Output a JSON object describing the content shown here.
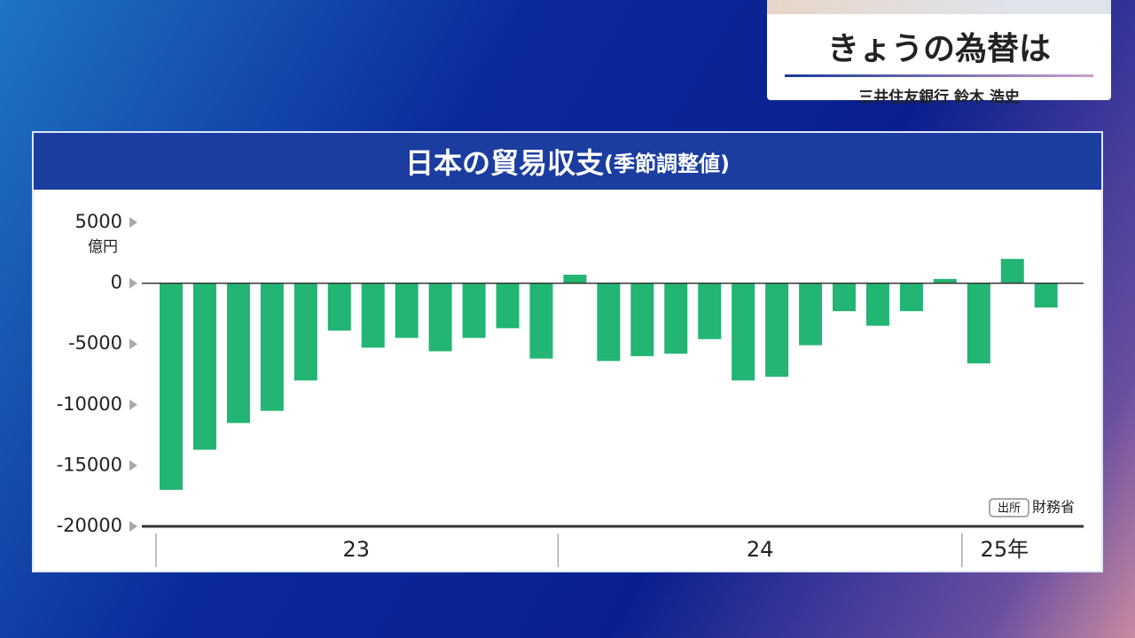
{
  "header": {
    "title": "きょうの為替は",
    "presenter": "三井住友銀行 鈴木 浩史"
  },
  "chart_data": {
    "type": "bar",
    "title": "日本の貿易収支",
    "subtitle": "(季節調整値)",
    "y_label": "億円",
    "source_tag": "出所",
    "source": "財務省",
    "categories": [
      null,
      null,
      null,
      null,
      null,
      null,
      null,
      null,
      null,
      null,
      null,
      null,
      null,
      null,
      null,
      null,
      null,
      null,
      null,
      null,
      null,
      null,
      null,
      null,
      null,
      null,
      null
    ],
    "x_group_labels": [
      "23",
      "24",
      "25年"
    ],
    "values": [
      -17000,
      -13700,
      -11500,
      -10500,
      -8000,
      -3900,
      -5300,
      -4500,
      -5600,
      -4500,
      -3700,
      -6200,
      700,
      -6400,
      -6000,
      -5800,
      -4600,
      -8000,
      -7700,
      -5100,
      -2300,
      -3500,
      -2300,
      350,
      -6600,
      2000,
      -2000
    ],
    "color": "#22b573",
    "ylim": [
      -20000,
      5000
    ],
    "yticks": [
      5000,
      0,
      -5000,
      -10000,
      -15000,
      -20000
    ]
  }
}
